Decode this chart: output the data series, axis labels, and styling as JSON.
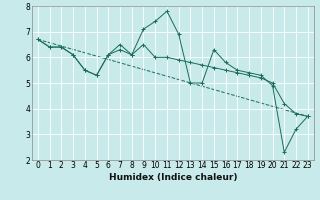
{
  "title": "",
  "xlabel": "Humidex (Indice chaleur)",
  "ylabel": "",
  "xlim": [
    -0.5,
    23.5
  ],
  "ylim": [
    2,
    8
  ],
  "yticks": [
    2,
    3,
    4,
    5,
    6,
    7,
    8
  ],
  "xticks": [
    0,
    1,
    2,
    3,
    4,
    5,
    6,
    7,
    8,
    9,
    10,
    11,
    12,
    13,
    14,
    15,
    16,
    17,
    18,
    19,
    20,
    21,
    22,
    23
  ],
  "bg_color": "#c8eaea",
  "line_color": "#1a6b5a",
  "grid_color": "#ffffff",
  "series1_x": [
    0,
    1,
    2,
    3,
    4,
    5,
    6,
    7,
    8,
    9,
    10,
    11,
    12,
    13,
    14,
    15,
    16,
    17,
    18,
    19,
    20,
    21,
    22,
    23
  ],
  "series1_y": [
    6.7,
    6.4,
    6.4,
    6.1,
    5.5,
    5.3,
    6.1,
    6.5,
    6.1,
    7.1,
    7.4,
    7.8,
    6.9,
    5.0,
    5.0,
    6.3,
    5.8,
    5.5,
    5.4,
    5.3,
    4.9,
    2.3,
    3.2,
    3.7
  ],
  "series2_x": [
    0,
    1,
    2,
    3,
    4,
    5,
    6,
    7,
    8,
    9,
    10,
    11,
    12,
    13,
    14,
    15,
    16,
    17,
    18,
    19,
    20,
    21,
    22,
    23
  ],
  "series2_y": [
    6.7,
    6.4,
    6.4,
    6.1,
    5.5,
    5.3,
    6.1,
    6.3,
    6.1,
    6.5,
    6.0,
    6.0,
    5.9,
    5.8,
    5.7,
    5.6,
    5.5,
    5.4,
    5.3,
    5.2,
    5.0,
    4.2,
    3.8,
    3.7
  ],
  "series3_x": [
    0,
    23
  ],
  "series3_y": [
    6.7,
    3.7
  ],
  "tick_fontsize": 5.5,
  "xlabel_fontsize": 6.5
}
